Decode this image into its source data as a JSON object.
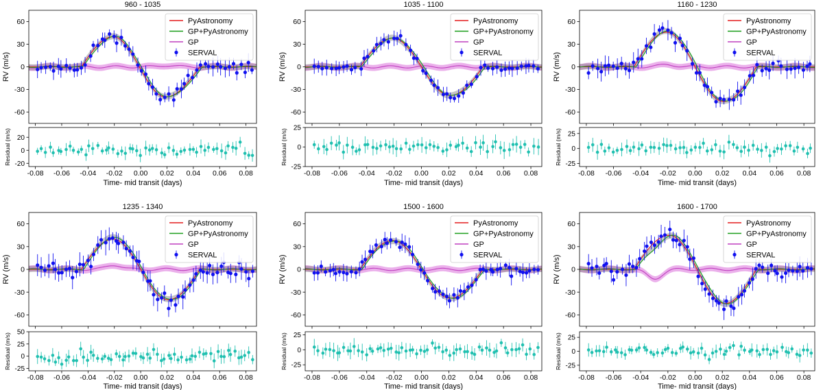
{
  "chart_data": [
    {
      "type": "line",
      "title": "960 - 1035",
      "xlabel": "Time- mid transit (days)",
      "ylabel": "RV (m/s)",
      "res_ylabel": "Residual (m/s)",
      "legend": [
        "PyAstronomy",
        "GP+PyAstronomy",
        "GP",
        "SERVAL"
      ],
      "xlim": [
        -0.085,
        0.088
      ],
      "ylim": [
        -75,
        75
      ],
      "res_ylim": [
        -25,
        35
      ],
      "x_ticks": [
        -0.08,
        -0.06,
        -0.04,
        -0.02,
        0.0,
        0.02,
        0.04,
        0.06,
        0.08
      ],
      "x_tick_labels": [
        "-0.08",
        "-0.06",
        "-0.04",
        "-0.02",
        "0.00",
        "0.02",
        "0.04",
        "0.06",
        "0.08"
      ],
      "y_ticks": [
        -60,
        -30,
        0,
        30,
        60
      ],
      "y_tick_labels": [
        "-60",
        "-30",
        "0",
        "30",
        "60"
      ],
      "res_ticks": [
        -20,
        0,
        20
      ],
      "res_tick_labels": [
        "-20",
        "0",
        "20"
      ],
      "model": {
        "amp": 40,
        "x_peak": -0.021,
        "x_trough": 0.019
      },
      "gp": {
        "bump": 2,
        "bump_x": 0.02
      },
      "serval": {
        "x_start": -0.078,
        "x_end": 0.085,
        "n": 55,
        "noise": 5,
        "err": 9,
        "seed": 11
      },
      "residual": {
        "spread": 7,
        "err": 8
      }
    },
    {
      "type": "line",
      "title": "1035 - 1100",
      "xlabel": "Time- mid transit (days)",
      "ylabel": "RV (m/s)",
      "res_ylabel": "Residual (m/s)",
      "legend": [
        "PyAstronomy",
        "GP+PyAstronomy",
        "GP",
        "SERVAL"
      ],
      "xlim": [
        -0.085,
        0.088
      ],
      "ylim": [
        -75,
        75
      ],
      "res_ylim": [
        -25,
        25
      ],
      "x_ticks": [
        -0.08,
        -0.06,
        -0.04,
        -0.02,
        0.0,
        0.02,
        0.04,
        0.06,
        0.08
      ],
      "x_tick_labels": [
        "-0.08",
        "-0.06",
        "-0.04",
        "-0.02",
        "0.00",
        "0.02",
        "0.04",
        "0.06",
        "0.08"
      ],
      "y_ticks": [
        -60,
        -30,
        0,
        30,
        60
      ],
      "y_tick_labels": [
        "-60",
        "-30",
        "0",
        "30",
        "60"
      ],
      "res_ticks": [
        -25,
        0,
        25
      ],
      "res_tick_labels": [
        "-25",
        "0",
        "25"
      ],
      "model": {
        "amp": 38,
        "x_peak": -0.021,
        "x_trough": 0.021
      },
      "gp": {
        "bump": 0,
        "bump_x": 0.0
      },
      "serval": {
        "x_start": -0.078,
        "x_end": 0.085,
        "n": 55,
        "noise": 4,
        "err": 8,
        "seed": 23
      },
      "residual": {
        "spread": 6,
        "err": 8
      }
    },
    {
      "type": "line",
      "title": "1160 - 1230",
      "xlabel": "Time- mid transit (days)",
      "ylabel": "RV (m/s)",
      "res_ylabel": "Residual (m/s)",
      "legend": [
        "PyAstronomy",
        "GP+PyAstronomy",
        "GP",
        "SERVAL"
      ],
      "xlim": [
        -0.085,
        0.088
      ],
      "ylim": [
        -75,
        75
      ],
      "res_ylim": [
        -30,
        35
      ],
      "x_ticks": [
        -0.08,
        -0.06,
        -0.04,
        -0.02,
        0.0,
        0.02,
        0.04,
        0.06,
        0.08
      ],
      "x_tick_labels": [
        "-0.08",
        "-0.06",
        "-0.04",
        "-0.02",
        "0.00",
        "0.02",
        "0.04",
        "0.06",
        "0.08"
      ],
      "y_ticks": [
        -60,
        -30,
        0,
        30,
        60
      ],
      "y_tick_labels": [
        "-60",
        "-30",
        "0",
        "30",
        "60"
      ],
      "res_ticks": [
        -25,
        0,
        25
      ],
      "res_tick_labels": [
        "-25",
        "0",
        "25"
      ],
      "model": {
        "amp": 46,
        "x_peak": -0.021,
        "x_trough": 0.021
      },
      "gp": {
        "bump": 3,
        "bump_x": -0.02
      },
      "serval": {
        "x_start": -0.078,
        "x_end": 0.085,
        "n": 55,
        "noise": 6,
        "err": 10,
        "seed": 37
      },
      "residual": {
        "spread": 9,
        "err": 9
      }
    },
    {
      "type": "line",
      "title": "1235 - 1340",
      "xlabel": "Time- mid transit (days)",
      "ylabel": "RV (m/s)",
      "res_ylabel": "Residual (m/s)",
      "legend": [
        "PyAstronomy",
        "GP+PyAstronomy",
        "GP",
        "SERVAL"
      ],
      "xlim": [
        -0.085,
        0.088
      ],
      "ylim": [
        -75,
        75
      ],
      "res_ylim": [
        -30,
        50
      ],
      "x_ticks": [
        -0.08,
        -0.06,
        -0.04,
        -0.02,
        0.0,
        0.02,
        0.04,
        0.06,
        0.08
      ],
      "x_tick_labels": [
        "-0.08",
        "-0.06",
        "-0.04",
        "-0.02",
        "0.00",
        "0.02",
        "0.04",
        "0.06",
        "0.08"
      ],
      "y_ticks": [
        -60,
        -30,
        0,
        30,
        60
      ],
      "y_tick_labels": [
        "-60",
        "-30",
        "0",
        "30",
        "60"
      ],
      "res_ticks": [
        -25,
        0,
        25,
        50
      ],
      "res_tick_labels": [
        "-25",
        "0",
        "25",
        "50"
      ],
      "model": {
        "amp": 40,
        "x_peak": -0.021,
        "x_trough": 0.021
      },
      "gp": {
        "bump": 6,
        "bump_x": -0.02
      },
      "serval": {
        "x_start": -0.078,
        "x_end": 0.085,
        "n": 62,
        "noise": 8,
        "err": 12,
        "seed": 51
      },
      "residual": {
        "spread": 11,
        "err": 11
      }
    },
    {
      "type": "line",
      "title": "1500 - 1600",
      "xlabel": "Time- mid transit (days)",
      "ylabel": "RV (m/s)",
      "res_ylabel": "Residual (m/s)",
      "legend": [
        "PyAstronomy",
        "GP+PyAstronomy",
        "GP",
        "SERVAL"
      ],
      "xlim": [
        -0.085,
        0.088
      ],
      "ylim": [
        -75,
        75
      ],
      "res_ylim": [
        -35,
        30
      ],
      "x_ticks": [
        -0.08,
        -0.06,
        -0.04,
        -0.02,
        0.0,
        0.02,
        0.04,
        0.06,
        0.08
      ],
      "x_tick_labels": [
        "-0.08",
        "-0.06",
        "-0.04",
        "-0.02",
        "0.00",
        "0.02",
        "0.04",
        "0.06",
        "0.08"
      ],
      "y_ticks": [
        -60,
        -30,
        0,
        30,
        60
      ],
      "y_tick_labels": [
        "-60",
        "-30",
        "0",
        "30",
        "60"
      ],
      "res_ticks": [
        -25,
        0,
        25
      ],
      "res_tick_labels": [
        "-25",
        "0",
        "25"
      ],
      "model": {
        "amp": 38,
        "x_peak": -0.021,
        "x_trough": 0.021
      },
      "gp": {
        "bump": 0,
        "bump_x": 0.0
      },
      "serval": {
        "x_start": -0.078,
        "x_end": 0.085,
        "n": 62,
        "noise": 5,
        "err": 9,
        "seed": 67
      },
      "residual": {
        "spread": 8,
        "err": 10
      }
    },
    {
      "type": "line",
      "title": "1600 - 1700",
      "xlabel": "Time- mid transit (days)",
      "ylabel": "RV (m/s)",
      "res_ylabel": "Residual (m/s)",
      "legend": [
        "PyAstronomy",
        "GP+PyAstronomy",
        "GP",
        "SERVAL"
      ],
      "xlim": [
        -0.085,
        0.088
      ],
      "ylim": [
        -75,
        75
      ],
      "res_ylim": [
        -35,
        35
      ],
      "x_ticks": [
        -0.08,
        -0.06,
        -0.04,
        -0.02,
        0.0,
        0.02,
        0.04,
        0.06,
        0.08
      ],
      "x_tick_labels": [
        "-0.08",
        "-0.06",
        "-0.04",
        "-0.02",
        "0.00",
        "0.02",
        "0.04",
        "0.06",
        "0.08"
      ],
      "y_ticks": [
        -60,
        -30,
        0,
        30,
        60
      ],
      "y_tick_labels": [
        "-60",
        "-30",
        "0",
        "30",
        "60"
      ],
      "res_ticks": [
        -25,
        0,
        25
      ],
      "res_tick_labels": [
        "-25",
        "0",
        "25"
      ],
      "model": {
        "amp": 45,
        "x_peak": -0.019,
        "x_trough": 0.022
      },
      "gp": {
        "bump": -12,
        "bump_x": -0.03
      },
      "serval": {
        "x_start": -0.078,
        "x_end": 0.085,
        "n": 62,
        "noise": 7,
        "err": 11,
        "seed": 83
      },
      "residual": {
        "spread": 10,
        "err": 9
      }
    }
  ],
  "colors": {
    "pyastronomy": "#e31a1c",
    "gp_pyastronomy": "#1a9e1a",
    "gp": "#bf3fbf",
    "gp_band": "#e8a2e8",
    "gp_py_band": "#7f7f7f",
    "serval": "#1010f0",
    "residual": "#20c0b0"
  }
}
